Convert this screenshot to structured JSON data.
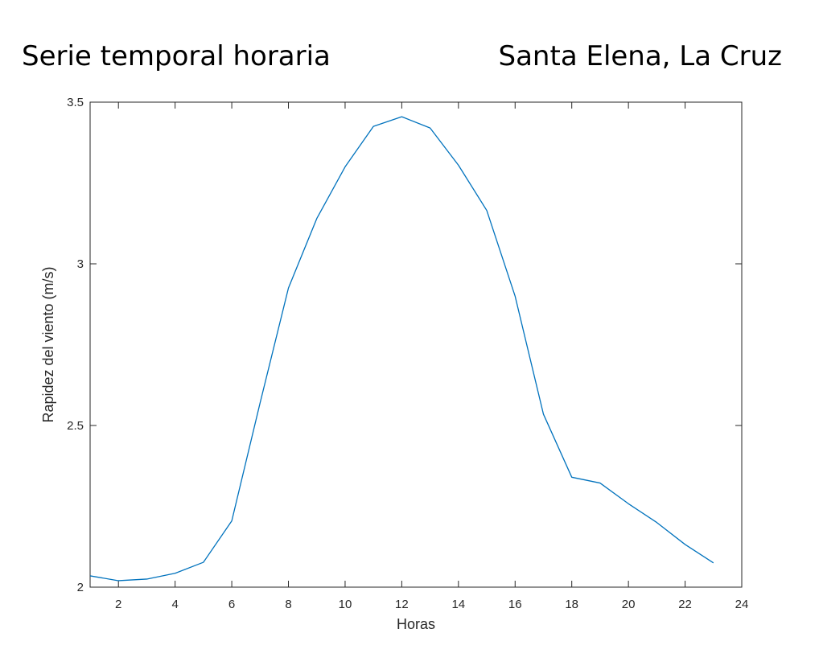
{
  "header": {
    "left_title": "Serie temporal horaria",
    "right_title": "Santa Elena, La Cruz"
  },
  "chart_data": {
    "type": "line",
    "xlabel": "Horas",
    "ylabel": "Rapidez del viento (m/s)",
    "xlim": [
      1,
      24
    ],
    "ylim": [
      2,
      3.5
    ],
    "xticks": [
      2,
      4,
      6,
      8,
      10,
      12,
      14,
      16,
      18,
      20,
      22,
      24
    ],
    "yticks": [
      2,
      2.5,
      3,
      3.5
    ],
    "grid": false,
    "series": [
      {
        "color": "#0072BD",
        "x": [
          1,
          2,
          3,
          4,
          5,
          6,
          7,
          8,
          9,
          10,
          11,
          12,
          13,
          14,
          15,
          16,
          17,
          18,
          19,
          20,
          21,
          22,
          23
        ],
        "values": [
          2.035,
          2.02,
          2.025,
          2.043,
          2.077,
          2.205,
          2.57,
          2.925,
          3.14,
          3.3,
          3.425,
          3.455,
          3.42,
          3.305,
          3.165,
          2.9,
          2.535,
          2.34,
          2.322,
          2.258,
          2.2,
          2.132,
          2.075
        ]
      }
    ]
  }
}
